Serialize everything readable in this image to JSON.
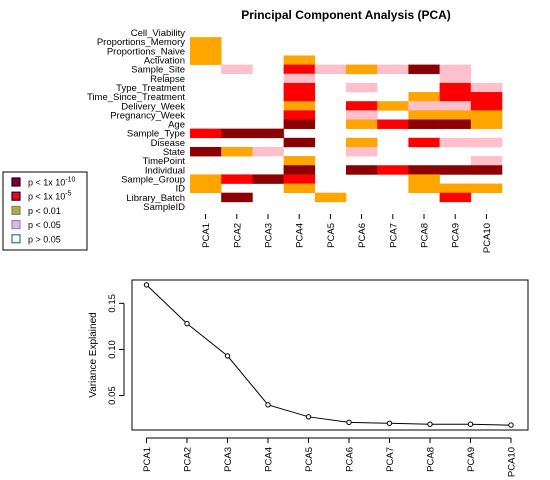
{
  "chart_data": [
    {
      "type": "heatmap",
      "title": "Principal Component Analysis (PCA)",
      "rows": [
        "Cell_Viability",
        "Proportions_Memory",
        "Proportions_Naive",
        "Activation",
        "Sample_Site",
        "Relapse",
        "Type_Treatment",
        "Time_Since_Treatment",
        "Delivery_Week",
        "Pregnancy_Week",
        "Age",
        "Sample_Type",
        "Disease",
        "State",
        "TimePoint",
        "Individual",
        "Sample_Group",
        "ID",
        "Library_Batch",
        "SampleID"
      ],
      "columns": [
        "PCA1",
        "PCA2",
        "PCA3",
        "PCA4",
        "PCA5",
        "PCA6",
        "PCA7",
        "PCA8",
        "PCA9",
        "PCA10"
      ],
      "levels": [
        "p < 1x 10^-10",
        "p < 1x 10^-5",
        "p < 0.01",
        "p < 0.05",
        "p > 0.05"
      ],
      "level_colors": [
        "#8b0000",
        "#ff0000",
        "#ffa500",
        "#ffc0cb",
        "#ffffff"
      ],
      "cells": [
        [
          4,
          4,
          4,
          4,
          4,
          4,
          4,
          4,
          4,
          4
        ],
        [
          2,
          4,
          4,
          4,
          4,
          4,
          4,
          4,
          4,
          4
        ],
        [
          2,
          4,
          4,
          4,
          4,
          4,
          4,
          4,
          4,
          4
        ],
        [
          2,
          4,
          4,
          2,
          4,
          4,
          4,
          4,
          4,
          4
        ],
        [
          4,
          3,
          4,
          1,
          3,
          2,
          3,
          0,
          3,
          4
        ],
        [
          4,
          4,
          4,
          3,
          4,
          4,
          4,
          4,
          3,
          4
        ],
        [
          4,
          4,
          4,
          1,
          4,
          3,
          4,
          4,
          1,
          3
        ],
        [
          4,
          4,
          4,
          1,
          4,
          4,
          4,
          2,
          1,
          1
        ],
        [
          4,
          4,
          4,
          2,
          4,
          1,
          2,
          3,
          3,
          1
        ],
        [
          4,
          4,
          4,
          1,
          4,
          3,
          4,
          2,
          2,
          2
        ],
        [
          4,
          4,
          4,
          0,
          4,
          2,
          1,
          0,
          0,
          2
        ],
        [
          1,
          0,
          0,
          4,
          4,
          4,
          4,
          4,
          4,
          4
        ],
        [
          4,
          4,
          4,
          0,
          4,
          2,
          4,
          1,
          3,
          3
        ],
        [
          0,
          2,
          3,
          4,
          4,
          3,
          4,
          4,
          4,
          4
        ],
        [
          4,
          4,
          4,
          2,
          4,
          4,
          4,
          4,
          4,
          3
        ],
        [
          4,
          4,
          4,
          0,
          4,
          0,
          1,
          0,
          0,
          0
        ],
        [
          2,
          1,
          0,
          1,
          4,
          4,
          4,
          2,
          4,
          4
        ],
        [
          2,
          4,
          4,
          2,
          4,
          4,
          4,
          2,
          2,
          2
        ],
        [
          4,
          0,
          4,
          4,
          2,
          4,
          4,
          4,
          1,
          4
        ],
        [
          4,
          4,
          4,
          4,
          4,
          4,
          4,
          4,
          4,
          4
        ]
      ]
    },
    {
      "type": "line",
      "x": [
        "PCA1",
        "PCA2",
        "PCA3",
        "PCA4",
        "PCA5",
        "PCA6",
        "PCA7",
        "PCA8",
        "PCA9",
        "PCA10"
      ],
      "values": [
        0.17,
        0.128,
        0.093,
        0.04,
        0.027,
        0.021,
        0.02,
        0.019,
        0.019,
        0.018
      ],
      "ylabel": "Variance Explained",
      "yticks": [
        0.05,
        0.1,
        0.15
      ],
      "ytick_labels": [
        "0.05",
        "0.10",
        "0.15"
      ],
      "ylim": [
        0.0127,
        0.1753
      ]
    }
  ]
}
